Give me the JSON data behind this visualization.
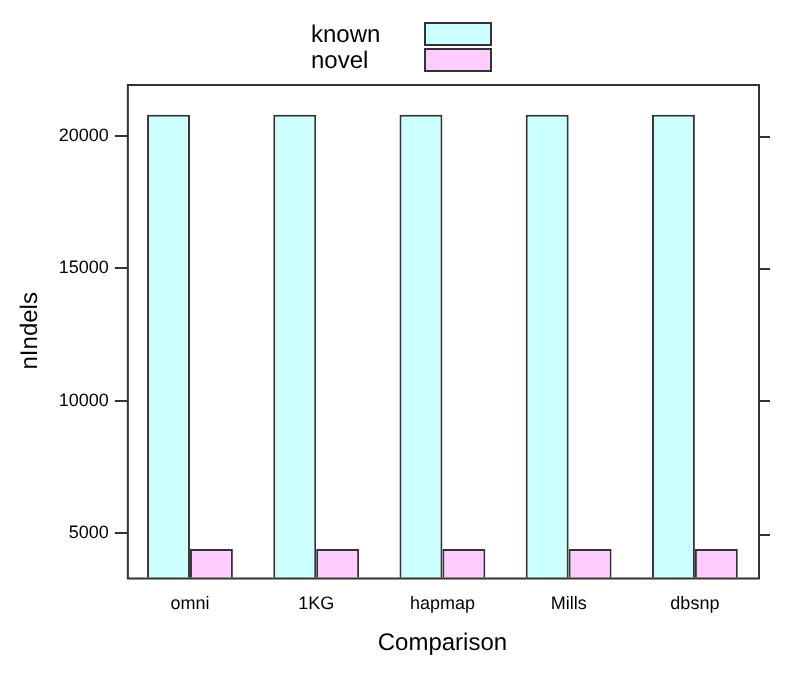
{
  "chart_data": {
    "type": "bar",
    "xlabel": "Comparison",
    "ylabel": "nIndels",
    "categories": [
      "omni",
      "1KG",
      "hapmap",
      "Mills",
      "dbsnp"
    ],
    "series": [
      {
        "name": "known",
        "color": "#ccffff",
        "values": [
          20800,
          20800,
          20800,
          20800,
          20800
        ]
      },
      {
        "name": "novel",
        "color": "#ffccff",
        "values": [
          4400,
          4400,
          4400,
          4400,
          4400
        ]
      }
    ],
    "ylim": [
      3320,
      21960
    ],
    "yticks": [
      5000,
      10000,
      15000,
      20000
    ],
    "grid": false,
    "legend": "top"
  }
}
